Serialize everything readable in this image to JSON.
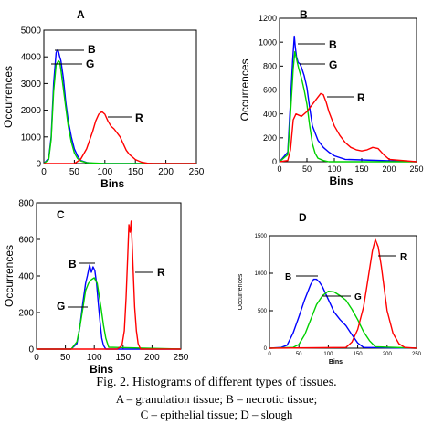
{
  "caption": {
    "title": "Fig. 2. Histograms of different types of tissues.",
    "line1": "A – granulation tissue; B – necrotic tissue;",
    "line2": "C – epithelial tissue; D – slough"
  },
  "colors": {
    "R": "#ff0000",
    "G": "#00d000",
    "B": "#0000ff",
    "axis": "#000000"
  },
  "chart_data": [
    {
      "type": "line",
      "panel": "A",
      "xlabel": "Bins",
      "ylabel": "Occurrences",
      "xlim": [
        0,
        250
      ],
      "ylim": [
        0,
        5000
      ],
      "xticks": [
        0,
        50,
        100,
        150,
        200,
        250
      ],
      "yticks": [
        0,
        1000,
        2000,
        3000,
        4000,
        5000
      ],
      "series": [
        {
          "name": "B",
          "color": "#0000ff",
          "x": [
            0,
            8,
            12,
            16,
            20,
            22,
            24,
            26,
            28,
            32,
            36,
            40,
            45,
            50,
            55,
            60,
            70,
            80,
            100,
            250
          ],
          "y": [
            0,
            200,
            1000,
            3000,
            4150,
            4250,
            4200,
            4000,
            3850,
            3200,
            2300,
            1600,
            1000,
            550,
            300,
            120,
            40,
            10,
            0,
            0
          ]
        },
        {
          "name": "G",
          "color": "#00d000",
          "x": [
            0,
            8,
            12,
            16,
            20,
            24,
            26,
            28,
            32,
            36,
            40,
            45,
            50,
            55,
            60,
            70,
            100,
            250
          ],
          "y": [
            0,
            150,
            900,
            2700,
            3700,
            3850,
            3800,
            3500,
            2800,
            2100,
            1400,
            800,
            400,
            200,
            100,
            30,
            0,
            0
          ]
        },
        {
          "name": "R",
          "color": "#ff0000",
          "x": [
            0,
            50,
            60,
            70,
            80,
            85,
            90,
            95,
            100,
            105,
            110,
            115,
            120,
            125,
            130,
            135,
            140,
            150,
            160,
            170,
            180,
            250
          ],
          "y": [
            0,
            0,
            150,
            550,
            1200,
            1600,
            1850,
            1950,
            1850,
            1600,
            1400,
            1300,
            1150,
            1000,
            750,
            500,
            350,
            150,
            50,
            10,
            0,
            0
          ]
        }
      ],
      "annotations": [
        "A",
        "B",
        "G",
        "R"
      ]
    },
    {
      "type": "line",
      "panel": "B",
      "xlabel": "Bins",
      "ylabel": "Occurrences",
      "xlim": [
        0,
        250
      ],
      "ylim": [
        0,
        1200
      ],
      "xticks": [
        0,
        50,
        100,
        150,
        200,
        250
      ],
      "yticks": [
        0,
        200,
        400,
        600,
        800,
        1000,
        1200
      ],
      "series": [
        {
          "name": "B",
          "color": "#0000ff",
          "x": [
            0,
            15,
            20,
            24,
            27,
            29,
            31,
            34,
            37,
            40,
            45,
            50,
            55,
            60,
            70,
            80,
            90,
            100,
            120,
            250
          ],
          "y": [
            0,
            80,
            500,
            850,
            1050,
            950,
            880,
            830,
            820,
            790,
            720,
            620,
            450,
            300,
            180,
            120,
            80,
            50,
            20,
            0
          ]
        },
        {
          "name": "G",
          "color": "#00d000",
          "x": [
            0,
            15,
            20,
            25,
            28,
            31,
            35,
            40,
            45,
            50,
            55,
            60,
            65,
            70,
            80,
            90,
            250
          ],
          "y": [
            0,
            60,
            400,
            780,
            920,
            860,
            780,
            700,
            600,
            480,
            300,
            150,
            70,
            30,
            10,
            0,
            0
          ]
        },
        {
          "name": "R",
          "color": "#ff0000",
          "x": [
            0,
            15,
            20,
            25,
            30,
            40,
            50,
            60,
            70,
            75,
            80,
            85,
            90,
            100,
            110,
            120,
            130,
            140,
            150,
            160,
            170,
            180,
            190,
            200,
            250
          ],
          "y": [
            0,
            10,
            100,
            350,
            400,
            380,
            420,
            480,
            540,
            570,
            560,
            500,
            420,
            300,
            220,
            160,
            120,
            100,
            90,
            100,
            120,
            110,
            60,
            20,
            0
          ]
        }
      ],
      "annotations": [
        "B",
        "B",
        "G",
        "R"
      ]
    },
    {
      "type": "line",
      "panel": "C",
      "xlabel": "Bins",
      "ylabel": "Occurrences",
      "xlim": [
        0,
        250
      ],
      "ylim": [
        0,
        800
      ],
      "xticks": [
        0,
        50,
        100,
        150,
        200,
        250
      ],
      "yticks": [
        0,
        200,
        400,
        600,
        800
      ],
      "series": [
        {
          "name": "B",
          "color": "#0000ff",
          "x": [
            0,
            60,
            70,
            75,
            80,
            85,
            88,
            92,
            95,
            98,
            101,
            104,
            107,
            110,
            113,
            116,
            120,
            250
          ],
          "y": [
            0,
            0,
            30,
            120,
            250,
            360,
            400,
            460,
            420,
            450,
            430,
            360,
            250,
            150,
            60,
            20,
            0,
            0
          ]
        },
        {
          "name": "G",
          "color": "#00d000",
          "x": [
            0,
            60,
            70,
            75,
            80,
            85,
            90,
            95,
            100,
            105,
            108,
            112,
            116,
            120,
            125,
            250
          ],
          "y": [
            0,
            0,
            40,
            120,
            220,
            320,
            360,
            380,
            390,
            360,
            300,
            220,
            130,
            60,
            10,
            0
          ]
        },
        {
          "name": "R",
          "color": "#ff0000",
          "x": [
            0,
            140,
            148,
            152,
            155,
            158,
            160,
            162,
            164,
            166,
            168,
            170,
            173,
            176,
            180,
            250
          ],
          "y": [
            0,
            0,
            20,
            100,
            280,
            520,
            680,
            640,
            700,
            550,
            380,
            230,
            100,
            30,
            0,
            0
          ]
        }
      ],
      "annotations": [
        "C",
        "B",
        "G",
        "R"
      ]
    },
    {
      "type": "line",
      "panel": "D",
      "xlabel": "Bins",
      "ylabel": "Occurrences",
      "xlim": [
        0,
        250
      ],
      "ylim": [
        0,
        1500
      ],
      "xticks": [
        0,
        50,
        100,
        150,
        200,
        250
      ],
      "yticks": [
        0,
        500,
        1000,
        1500
      ],
      "series": [
        {
          "name": "B",
          "color": "#0000ff",
          "x": [
            0,
            20,
            30,
            40,
            50,
            60,
            70,
            75,
            80,
            85,
            90,
            100,
            110,
            120,
            130,
            140,
            150,
            160,
            250
          ],
          "y": [
            0,
            10,
            40,
            200,
            420,
            650,
            850,
            920,
            920,
            880,
            820,
            650,
            480,
            380,
            300,
            180,
            70,
            10,
            0
          ]
        },
        {
          "name": "G",
          "color": "#00d000",
          "x": [
            0,
            40,
            50,
            60,
            70,
            80,
            90,
            100,
            110,
            120,
            130,
            140,
            150,
            160,
            170,
            180,
            250
          ],
          "y": [
            0,
            10,
            50,
            180,
            380,
            580,
            700,
            760,
            750,
            700,
            640,
            520,
            380,
            220,
            100,
            20,
            0
          ]
        },
        {
          "name": "R",
          "color": "#ff0000",
          "x": [
            0,
            130,
            140,
            150,
            160,
            165,
            170,
            175,
            180,
            185,
            190,
            195,
            200,
            210,
            220,
            230,
            250
          ],
          "y": [
            0,
            10,
            80,
            250,
            550,
            800,
            1050,
            1300,
            1450,
            1350,
            1100,
            800,
            500,
            200,
            60,
            10,
            0
          ]
        }
      ],
      "annotations": [
        "D",
        "B",
        "G",
        "R"
      ]
    }
  ]
}
